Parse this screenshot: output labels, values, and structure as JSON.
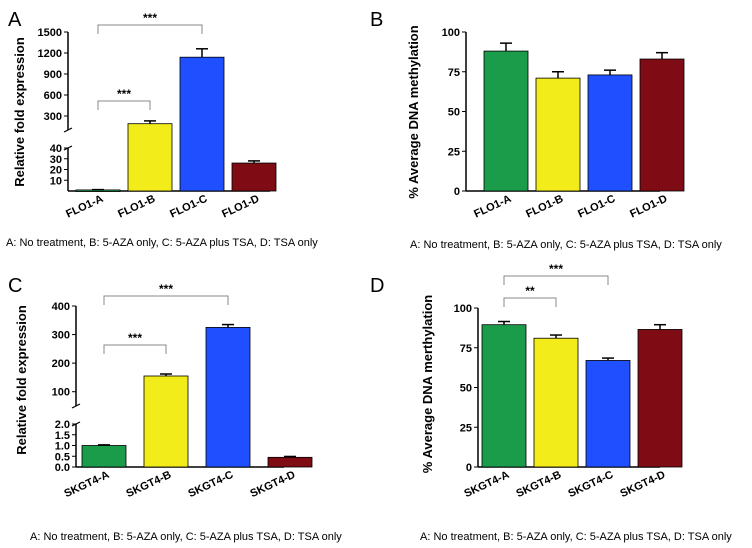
{
  "colors": [
    "#1a9c4a",
    "#f2ec1a",
    "#1f4fff",
    "#7f0c14"
  ],
  "chart_data": [
    {
      "panel": "A",
      "type": "bar",
      "categories": [
        "FLO1-A",
        "FLO1-B",
        "FLO1-C",
        "FLO1-D"
      ],
      "values": [
        1,
        190,
        1140,
        26
      ],
      "errors": [
        0.3,
        40,
        120,
        2
      ],
      "ylabel": "Relative fold expression",
      "axis_break": {
        "lower": [
          0,
          40
        ],
        "upper": [
          100,
          1500
        ]
      },
      "lower_ticks": [
        "10",
        "20",
        "30",
        "40"
      ],
      "upper_ticks": [
        "300",
        "600",
        "900",
        "1200",
        "1500"
      ],
      "significance": [
        {
          "from": 0,
          "to": 1,
          "label": "***"
        },
        {
          "from": 0,
          "to": 2,
          "label": "***"
        }
      ],
      "caption": "A: No treatment, B: 5-AZA only, C: 5-AZA plus TSA, D: TSA only"
    },
    {
      "panel": "B",
      "type": "bar",
      "categories": [
        "FLO1-A",
        "FLO1-B",
        "FLO1-C",
        "FLO1-D"
      ],
      "values": [
        88,
        71,
        73,
        83
      ],
      "errors": [
        5,
        4,
        3,
        4
      ],
      "ylabel": "% Average DNA methylation",
      "ylim": [
        0,
        100
      ],
      "ticks": [
        "0",
        "25",
        "50",
        "75",
        "100"
      ],
      "significance": [],
      "caption": "A: No treatment, B: 5-AZA only, C: 5-AZA plus TSA, D: TSA only"
    },
    {
      "panel": "C",
      "type": "bar",
      "categories": [
        "SKGT4-A",
        "SKGT4-B",
        "SKGT4-C",
        "SKGT4-D"
      ],
      "values": [
        1,
        155,
        325,
        0.45
      ],
      "errors": [
        0.03,
        7,
        10,
        0.04
      ],
      "ylabel": "Relative fold expression",
      "axis_break": {
        "lower": [
          0,
          2
        ],
        "upper": [
          50,
          400
        ]
      },
      "lower_ticks": [
        "0.0",
        "0.5",
        "1.0",
        "1.5",
        "2.0"
      ],
      "upper_ticks": [
        "100",
        "200",
        "300",
        "400"
      ],
      "significance": [
        {
          "from": 0,
          "to": 1,
          "label": "***"
        },
        {
          "from": 0,
          "to": 2,
          "label": "***"
        }
      ],
      "caption": "A: No treatment, B: 5-AZA only, C: 5-AZA plus TSA, D: TSA only"
    },
    {
      "panel": "D",
      "type": "bar",
      "categories": [
        "SKGT4-A",
        "SKGT4-B",
        "SKGT4-C",
        "SKGT4-D"
      ],
      "values": [
        89.5,
        81,
        67,
        86.5
      ],
      "errors": [
        2,
        2,
        1.5,
        3
      ],
      "ylabel": "% Average DNA merthylation",
      "ylim": [
        0,
        100
      ],
      "ticks": [
        "0",
        "25",
        "50",
        "75",
        "100"
      ],
      "significance": [
        {
          "from": 0,
          "to": 1,
          "label": "**"
        },
        {
          "from": 0,
          "to": 2,
          "label": "***"
        }
      ],
      "caption": "A: No treatment, B: 5-AZA only, C: 5-AZA plus TSA, D: TSA only"
    }
  ]
}
